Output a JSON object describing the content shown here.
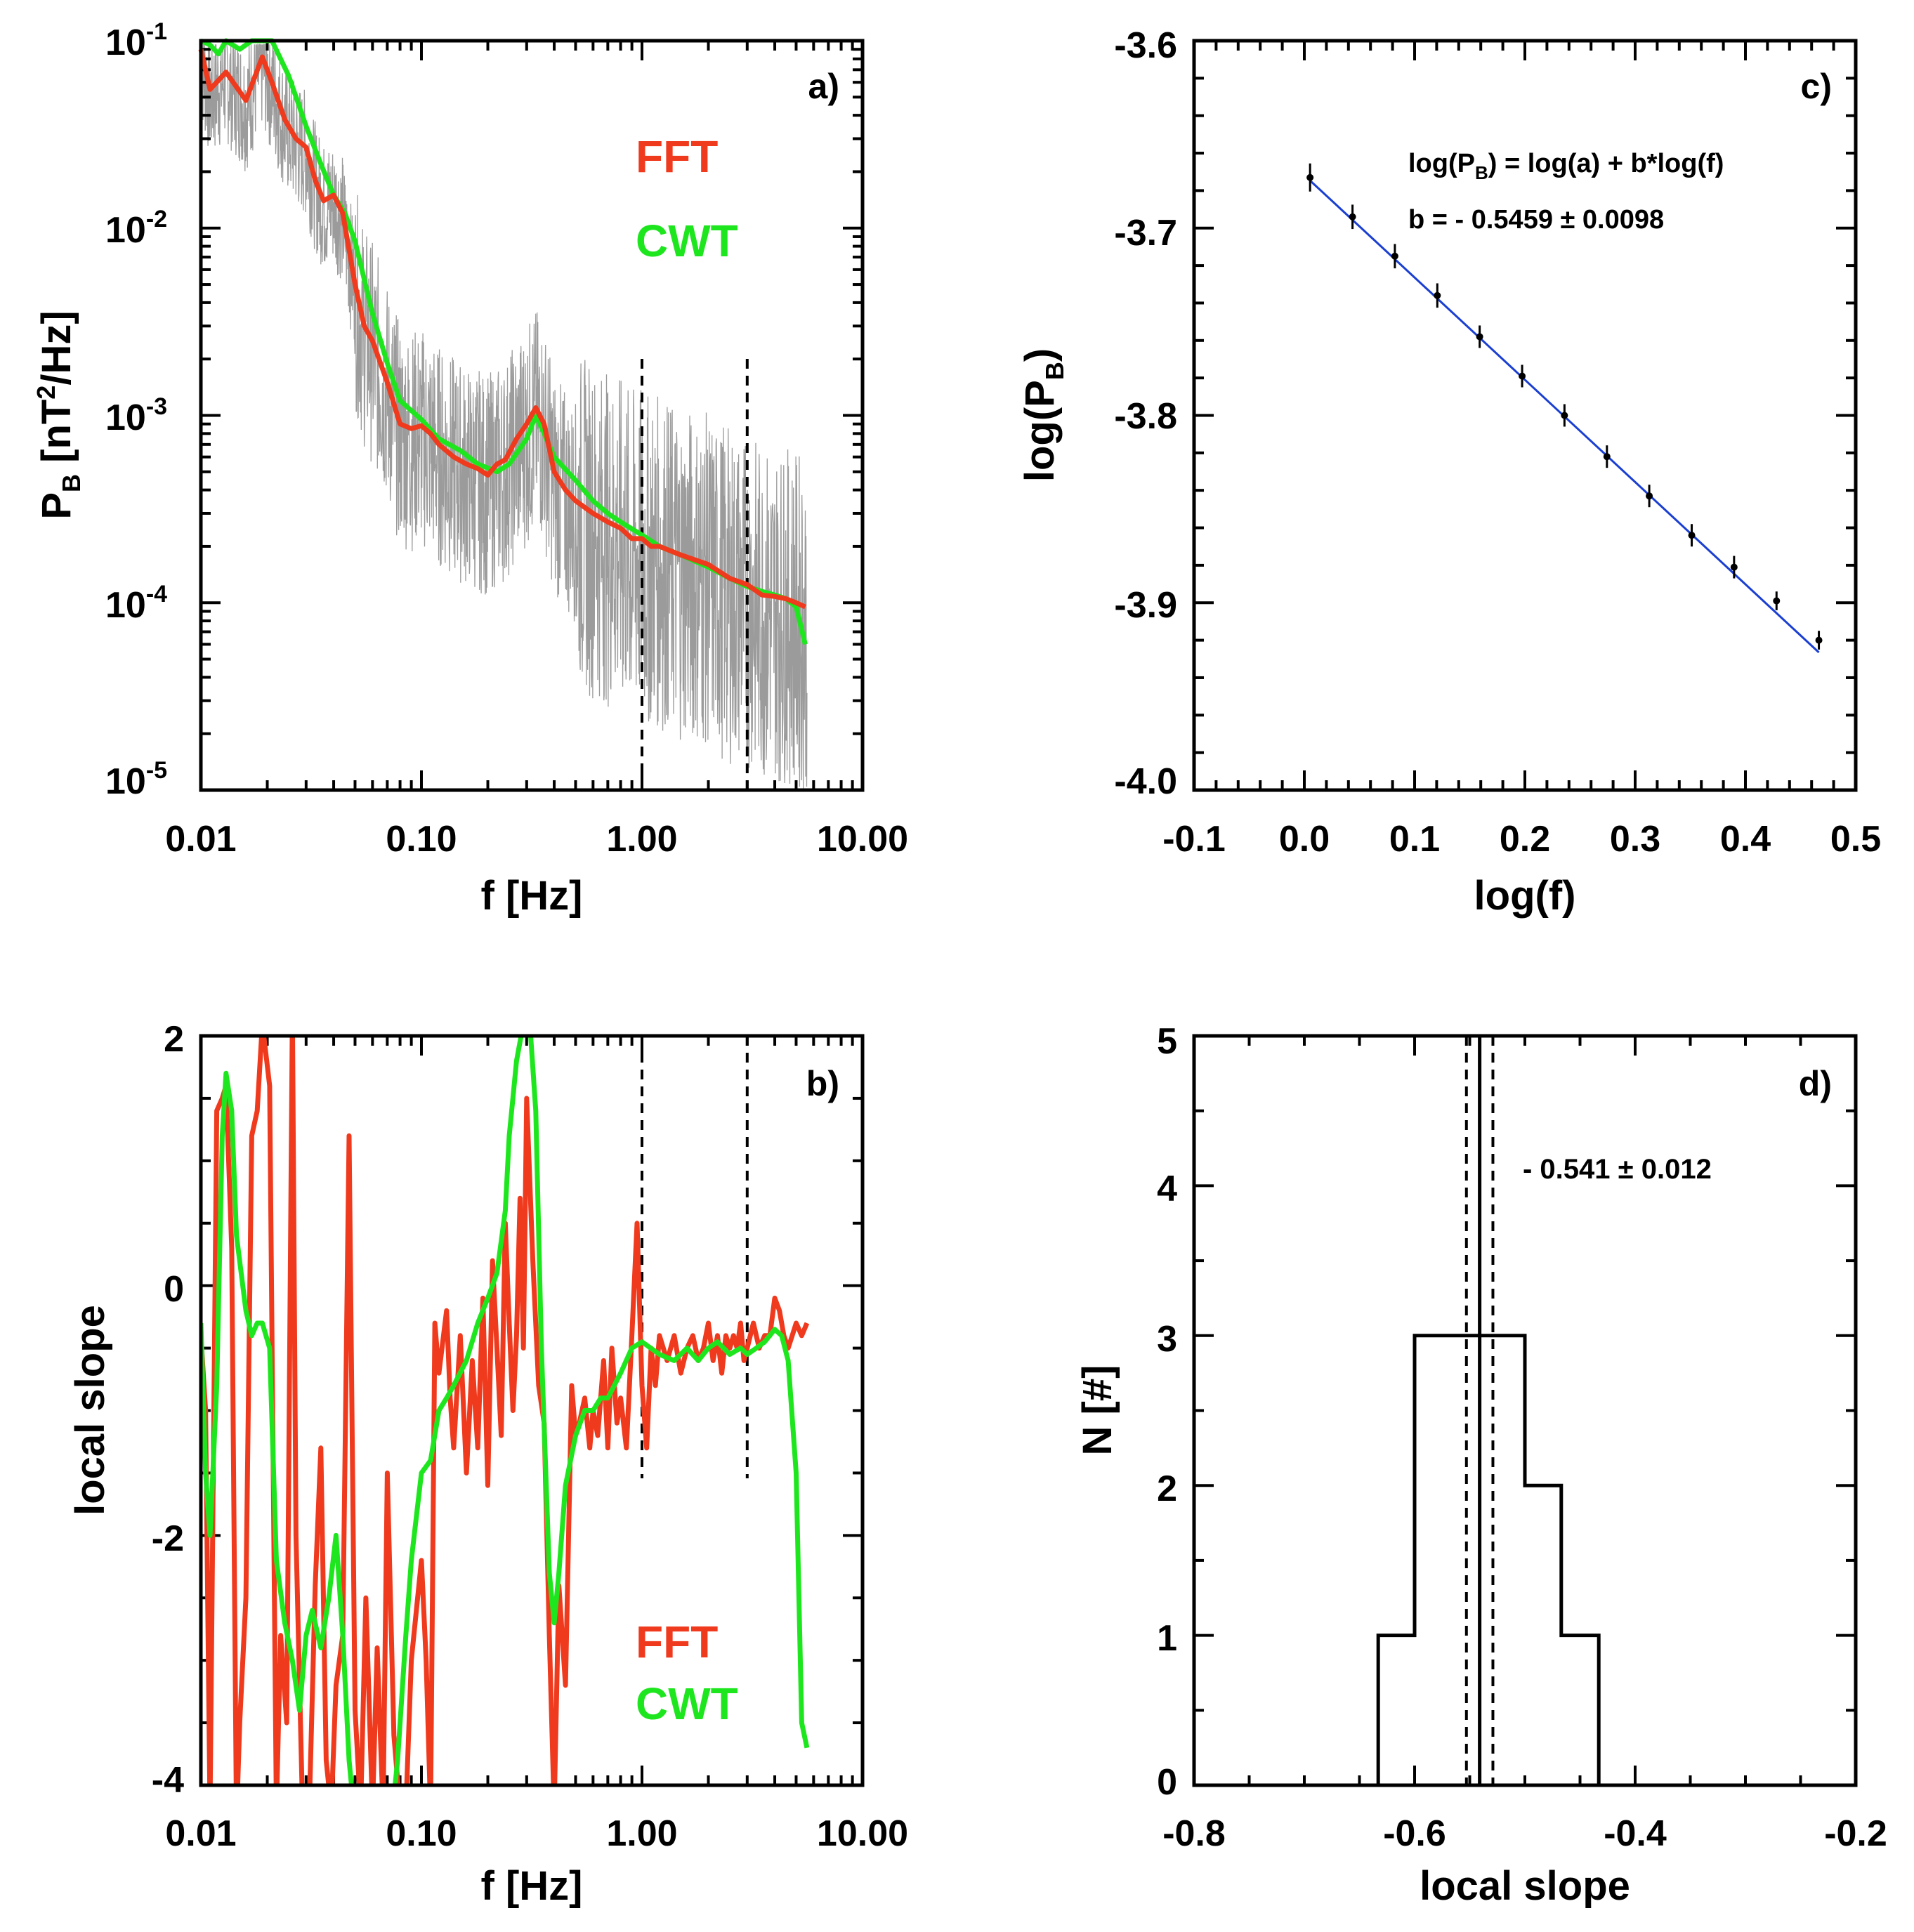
{
  "colors": {
    "fft": "#ef3a1e",
    "cwt": "#1ee61e",
    "raw": "#9b9b9b",
    "fit": "#1a3fd1",
    "axis": "#000000"
  },
  "chart_data": [
    {
      "id": "a",
      "type": "line",
      "panel_label": "a)",
      "xscale": "log",
      "yscale": "log",
      "xlim": [
        0.01,
        10
      ],
      "ylim": [
        1e-05,
        0.1
      ],
      "xticks": [
        "0.01",
        "0.10",
        "1.00",
        "10.00"
      ],
      "yticks": [
        {
          "base": "10",
          "exp": "-1"
        },
        {
          "base": "10",
          "exp": "-2"
        },
        {
          "base": "10",
          "exp": "-3"
        },
        {
          "base": "10",
          "exp": "-4"
        },
        {
          "base": "10",
          "exp": "-5"
        }
      ],
      "xlabel": "f [Hz]",
      "ylabel": {
        "main": "P",
        "sub": "B",
        "rest": " [nT",
        "sup": "2",
        "end": "/Hz]"
      },
      "vlines": [
        1.0,
        3.0
      ],
      "legend": [
        "FFT",
        "CWT"
      ],
      "series": [
        {
          "name": "FFT",
          "x": [
            0.01,
            0.011,
            0.013,
            0.016,
            0.019,
            0.021,
            0.024,
            0.027,
            0.03,
            0.033,
            0.036,
            0.04,
            0.044,
            0.05,
            0.055,
            0.06,
            0.07,
            0.08,
            0.09,
            0.1,
            0.11,
            0.12,
            0.14,
            0.16,
            0.18,
            0.2,
            0.22,
            0.24,
            0.27,
            0.3,
            0.33,
            0.36,
            0.4,
            0.45,
            0.5,
            0.6,
            0.7,
            0.8,
            0.9,
            1.0,
            1.1,
            1.2,
            1.5,
            2.0,
            2.5,
            3.0,
            3.5,
            4.0,
            4.5,
            5.0,
            5.5
          ],
          "y": [
            0.09,
            0.055,
            0.068,
            0.048,
            0.082,
            0.06,
            0.038,
            0.03,
            0.027,
            0.018,
            0.014,
            0.015,
            0.012,
            0.005,
            0.003,
            0.0025,
            0.0015,
            0.0009,
            0.00085,
            0.00088,
            0.0008,
            0.0007,
            0.0006,
            0.00055,
            0.00052,
            0.00048,
            0.00055,
            0.00058,
            0.00075,
            0.0009,
            0.0011,
            0.0009,
            0.0005,
            0.0004,
            0.00035,
            0.0003,
            0.00027,
            0.00025,
            0.00022,
            0.00022,
            0.0002,
            0.0002,
            0.00018,
            0.00016,
            0.000135,
            0.000125,
            0.00011,
            0.000108,
            0.000105,
            0.0001,
            9.5e-05
          ]
        },
        {
          "name": "CWT",
          "x": [
            0.01,
            0.011,
            0.012,
            0.013,
            0.015,
            0.017,
            0.019,
            0.021,
            0.025,
            0.03,
            0.035,
            0.04,
            0.045,
            0.05,
            0.06,
            0.07,
            0.08,
            0.1,
            0.12,
            0.15,
            0.18,
            0.22,
            0.25,
            0.3,
            0.33,
            0.36,
            0.4,
            0.5,
            0.6,
            0.7,
            0.8,
            1.0,
            1.2,
            1.5,
            2.0,
            2.5,
            3.0,
            3.5,
            4.0,
            4.5,
            5.0,
            5.5
          ],
          "y": [
            0.1,
            0.095,
            0.085,
            0.1,
            0.09,
            0.1,
            0.1,
            0.12,
            0.065,
            0.035,
            0.022,
            0.015,
            0.012,
            0.0085,
            0.0035,
            0.0019,
            0.0012,
            0.00095,
            0.00075,
            0.00065,
            0.00055,
            0.0005,
            0.00055,
            0.00075,
            0.001,
            0.0008,
            0.0006,
            0.00045,
            0.00035,
            0.0003,
            0.00027,
            0.00023,
            0.0002,
            0.00018,
            0.000155,
            0.000135,
            0.000122,
            0.000115,
            0.00011,
            0.000105,
            9.5e-05,
            6e-05
          ]
        }
      ]
    },
    {
      "id": "b",
      "type": "line",
      "panel_label": "b)",
      "xscale": "log",
      "yscale": "linear",
      "xlim": [
        0.01,
        10
      ],
      "ylim": [
        -4,
        2
      ],
      "xticks": [
        "0.01",
        "0.10",
        "1.00",
        "10.00"
      ],
      "yticks": [
        "2",
        "0",
        "-2",
        "-4"
      ],
      "xlabel": "f [Hz]",
      "ylabel": "local slope",
      "vlines": [
        1.0,
        3.0
      ],
      "legend": [
        "FFT",
        "CWT"
      ],
      "series": [
        {
          "name": "FFT",
          "x": [
            0.01,
            0.0105,
            0.011,
            0.0118,
            0.0125,
            0.013,
            0.0138,
            0.0145,
            0.015,
            0.016,
            0.017,
            0.018,
            0.019,
            0.0205,
            0.022,
            0.023,
            0.0245,
            0.026,
            0.027,
            0.029,
            0.031,
            0.033,
            0.035,
            0.037,
            0.039,
            0.041,
            0.044,
            0.047,
            0.05,
            0.053,
            0.056,
            0.06,
            0.063,
            0.067,
            0.07,
            0.075,
            0.08,
            0.085,
            0.09,
            0.1,
            0.105,
            0.11,
            0.115,
            0.12,
            0.13,
            0.135,
            0.14,
            0.15,
            0.16,
            0.17,
            0.18,
            0.19,
            0.2,
            0.21,
            0.22,
            0.23,
            0.24,
            0.25,
            0.26,
            0.27,
            0.28,
            0.29,
            0.3,
            0.32,
            0.34,
            0.36,
            0.38,
            0.4,
            0.42,
            0.45,
            0.48,
            0.5,
            0.52,
            0.55,
            0.58,
            0.6,
            0.63,
            0.67,
            0.7,
            0.73,
            0.77,
            0.8,
            0.85,
            0.9,
            0.95,
            1.0,
            1.05,
            1.1,
            1.15,
            1.2,
            1.3,
            1.4,
            1.5,
            1.6,
            1.7,
            1.8,
            1.9,
            2.0,
            2.1,
            2.2,
            2.3,
            2.4,
            2.5,
            2.6,
            2.7,
            2.8,
            2.9,
            3.0,
            3.2,
            3.4,
            3.6,
            3.8,
            4.0,
            4.2,
            4.4,
            4.6,
            4.8,
            5.0,
            5.3,
            5.6
          ],
          "y": [
            -0.4,
            -1.0,
            -4.2,
            1.4,
            1.5,
            1.6,
            0.3,
            -4.3,
            -3.5,
            -2.5,
            1.2,
            1.4,
            2.1,
            1.6,
            -4.2,
            -2.8,
            -3.5,
            2.2,
            -2.0,
            -4.3,
            -4.2,
            -2.4,
            -1.3,
            -3.8,
            -4.2,
            -3.2,
            -2.8,
            1.2,
            -3.4,
            -4.2,
            -2.5,
            -4.2,
            -2.9,
            -4.2,
            -1.5,
            -3.6,
            -4.2,
            -4.2,
            -3.0,
            -2.2,
            -3.0,
            -4.2,
            -0.3,
            -0.7,
            -0.2,
            -0.9,
            -1.3,
            -0.4,
            -1.5,
            -0.6,
            -1.3,
            -0.1,
            -1.6,
            0.2,
            -0.5,
            -1.2,
            0.5,
            -0.3,
            -1.0,
            -0.4,
            0.7,
            -0.5,
            1.5,
            0.2,
            -0.8,
            -1.1,
            -2.8,
            -4.2,
            -2.4,
            -3.2,
            -0.8,
            -1.2,
            -1.1,
            -0.9,
            -1.3,
            -1.0,
            -1.2,
            -0.6,
            -1.3,
            -0.5,
            -1.1,
            -0.9,
            -1.3,
            -0.4,
            0.5,
            -0.8,
            -1.3,
            -0.5,
            -0.8,
            -0.4,
            -0.6,
            -0.4,
            -0.7,
            -0.5,
            -0.4,
            -0.6,
            -0.5,
            -0.3,
            -0.6,
            -0.4,
            -0.7,
            -0.4,
            -0.5,
            -0.4,
            -0.5,
            -0.3,
            -0.6,
            -0.5,
            -0.3,
            -0.5,
            -0.4,
            -0.4,
            -0.1,
            -0.2,
            -0.4,
            -0.5,
            -0.4,
            -0.3,
            -0.4,
            -0.3
          ]
        },
        {
          "name": "CWT",
          "x": [
            0.01,
            0.0105,
            0.011,
            0.0118,
            0.0125,
            0.013,
            0.0138,
            0.0145,
            0.016,
            0.017,
            0.018,
            0.019,
            0.0205,
            0.022,
            0.024,
            0.026,
            0.028,
            0.03,
            0.032,
            0.035,
            0.038,
            0.041,
            0.044,
            0.047,
            0.05,
            0.055,
            0.06,
            0.066,
            0.072,
            0.078,
            0.085,
            0.09,
            0.1,
            0.11,
            0.12,
            0.13,
            0.14,
            0.16,
            0.18,
            0.2,
            0.22,
            0.24,
            0.25,
            0.27,
            0.29,
            0.31,
            0.33,
            0.35,
            0.38,
            0.4,
            0.42,
            0.45,
            0.5,
            0.55,
            0.6,
            0.65,
            0.7,
            0.8,
            0.9,
            1.0,
            1.2,
            1.4,
            1.6,
            1.8,
            2.0,
            2.2,
            2.5,
            2.8,
            3.0,
            3.3,
            3.6,
            4.0,
            4.3,
            4.6,
            5.0,
            5.3,
            5.6
          ],
          "y": [
            -0.3,
            -1.5,
            -2.0,
            -0.8,
            1.2,
            1.7,
            1.4,
            0.4,
            -0.2,
            -0.4,
            -0.3,
            -0.3,
            -0.5,
            -2.2,
            -2.7,
            -3.0,
            -3.4,
            -2.8,
            -2.6,
            -2.9,
            -2.5,
            -2.0,
            -2.8,
            -3.8,
            -4.3,
            -4.2,
            -4.2,
            -4.3,
            -4.4,
            -3.8,
            -2.8,
            -2.2,
            -1.5,
            -1.4,
            -1.0,
            -0.9,
            -0.8,
            -0.6,
            -0.3,
            -0.1,
            0.1,
            0.6,
            1.2,
            1.8,
            2.1,
            2.1,
            1.4,
            -0.5,
            -2.3,
            -2.7,
            -2.3,
            -1.6,
            -1.2,
            -1.0,
            -1.0,
            -0.9,
            -0.9,
            -0.7,
            -0.5,
            -0.45,
            -0.55,
            -0.6,
            -0.5,
            -0.6,
            -0.5,
            -0.45,
            -0.55,
            -0.5,
            -0.55,
            -0.5,
            -0.45,
            -0.35,
            -0.4,
            -0.6,
            -1.5,
            -3.5,
            -3.7
          ]
        }
      ]
    },
    {
      "id": "c",
      "type": "scatter",
      "panel_label": "c)",
      "xlim": [
        -0.1,
        0.5
      ],
      "ylim": [
        -4.0,
        -3.6
      ],
      "xticks": [
        "-0.1",
        "0.0",
        "0.1",
        "0.2",
        "0.3",
        "0.4",
        "0.5"
      ],
      "yticks": [
        "-3.6",
        "-3.7",
        "-3.8",
        "-3.9",
        "-4.0"
      ],
      "xlabel": "log(f)",
      "ylabel": {
        "main": "log(P",
        "sub": "B",
        "end": ")"
      },
      "annotation": {
        "line1_a": "log(P",
        "line1_sub": "B",
        "line1_b": ") = log(a) + b*log(f)",
        "line2": "b = - 0.5459 ± 0.0098"
      },
      "fit": {
        "slope": -0.5459,
        "intercept": -3.6718
      },
      "points": {
        "x": [
          0.0052,
          0.0437,
          0.0821,
          0.1206,
          0.159,
          0.1975,
          0.2359,
          0.2744,
          0.3128,
          0.3513,
          0.3897,
          0.4282,
          0.4666
        ],
        "y": [
          -3.673,
          -3.694,
          -3.715,
          -3.736,
          -3.758,
          -3.779,
          -3.8,
          -3.822,
          -3.843,
          -3.864,
          -3.881,
          -3.899,
          -3.92
        ],
        "err": [
          0.0075,
          0.0065,
          0.0065,
          0.0065,
          0.006,
          0.006,
          0.006,
          0.006,
          0.006,
          0.006,
          0.006,
          0.005,
          0.005
        ]
      }
    },
    {
      "id": "d",
      "type": "bar",
      "panel_label": "d)",
      "xlim": [
        -0.8,
        -0.2
      ],
      "ylim": [
        0,
        5
      ],
      "xticks": [
        "-0.8",
        "-0.6",
        "-0.4",
        "-0.2"
      ],
      "yticks": [
        "5",
        "4",
        "3",
        "2",
        "1",
        "0"
      ],
      "xlabel": "local slope",
      "ylabel": "N [#]",
      "bin_edges": [
        -0.633,
        -0.6,
        -0.567,
        -0.533,
        -0.5,
        -0.467,
        -0.433
      ],
      "counts": [
        1,
        3,
        3,
        3,
        2,
        1
      ],
      "vlines": {
        "mean": -0.541,
        "lo": -0.553,
        "hi": -0.529
      },
      "annotation": "- 0.541 ± 0.012"
    }
  ]
}
